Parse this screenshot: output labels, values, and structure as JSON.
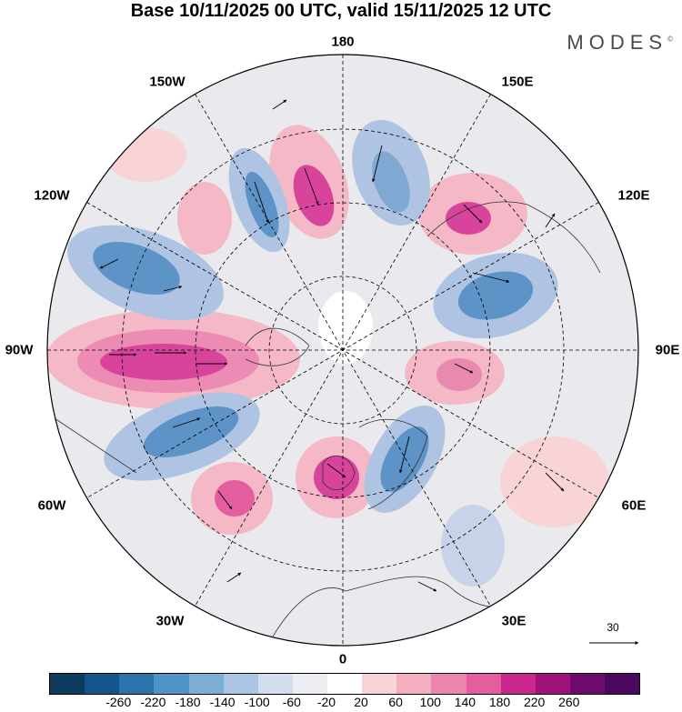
{
  "title": "Base 10/11/2025 00 UTC, valid 15/11/2025 12 UTC",
  "brand": "MODES",
  "brand_mark": "©",
  "longitude_labels": {
    "n180": "180",
    "w150": "150W",
    "e150": "150E",
    "w120": "120W",
    "e120": "120E",
    "w90": "90W",
    "e90": "90E",
    "w60": "60W",
    "e60": "60E",
    "w30": "30W",
    "e30": "30E",
    "n0": "0"
  },
  "vector_scale": "30",
  "colorbar": {
    "colors": [
      "#0d3b5e",
      "#14548c",
      "#2a74ad",
      "#4f94c6",
      "#7cafd7",
      "#aac6e4",
      "#d2ddee",
      "#ececf3",
      "#ffffff",
      "#f8d4d6",
      "#f4aec0",
      "#ee85ae",
      "#e35d9f",
      "#c9278b",
      "#a0127a",
      "#6e0c6e",
      "#4a085e"
    ],
    "ticks": [
      "-260",
      "-220",
      "-180",
      "-140",
      "-100",
      "-60",
      "-20",
      "20",
      "60",
      "100",
      "140",
      "180",
      "220",
      "260"
    ]
  },
  "colors": {
    "negative_strong": "#3a7ab8",
    "negative_mid": "#8fb4d9",
    "negative_light": "#c6d3e8",
    "neutral": "#e9e9ed",
    "positive_light": "#f6c9cd",
    "positive_mid": "#ef8fb5",
    "positive_strong": "#d8449c"
  }
}
